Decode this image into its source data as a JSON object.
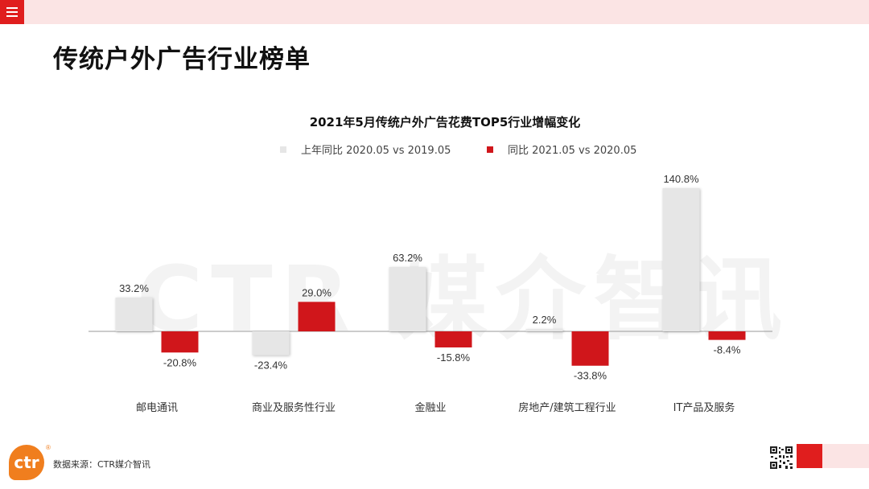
{
  "page": {
    "title": "传统户外广告行业榜单",
    "watermark": "CTR 媒介智讯",
    "source": "数据来源：CTR媒介智讯",
    "logo_text": "ctr",
    "logo_mark": "®"
  },
  "colors": {
    "accent": "#e01e1e",
    "light_bar": "#e6e6e6",
    "red_bar": "#d0161b",
    "top_bar": "#fbe4e4",
    "logo": "#f07e1e"
  },
  "chart_data": {
    "type": "bar",
    "title": "2021年5月传统户外广告花费TOP5行业增幅变化",
    "xlabel": "",
    "ylabel": "",
    "ylim": [
      -40,
      150
    ],
    "grid": false,
    "legend_position": "top",
    "categories": [
      "邮电通讯",
      "商业及服务性行业",
      "金融业",
      "房地产/建筑工程行业",
      "IT产品及服务"
    ],
    "series": [
      {
        "name": "上年同比 2020.05 vs 2019.05",
        "values": [
          33.2,
          -23.4,
          63.2,
          2.2,
          140.8
        ],
        "labels": [
          "33.2%",
          "-23.4%",
          "63.2%",
          "2.2%",
          "140.8%"
        ]
      },
      {
        "name": "同比 2021.05 vs 2020.05",
        "values": [
          -20.8,
          29.0,
          -15.8,
          -33.8,
          -8.4
        ],
        "labels": [
          "-20.8%",
          "29.0%",
          "-15.8%",
          "-33.8%",
          "-8.4%"
        ]
      }
    ]
  }
}
